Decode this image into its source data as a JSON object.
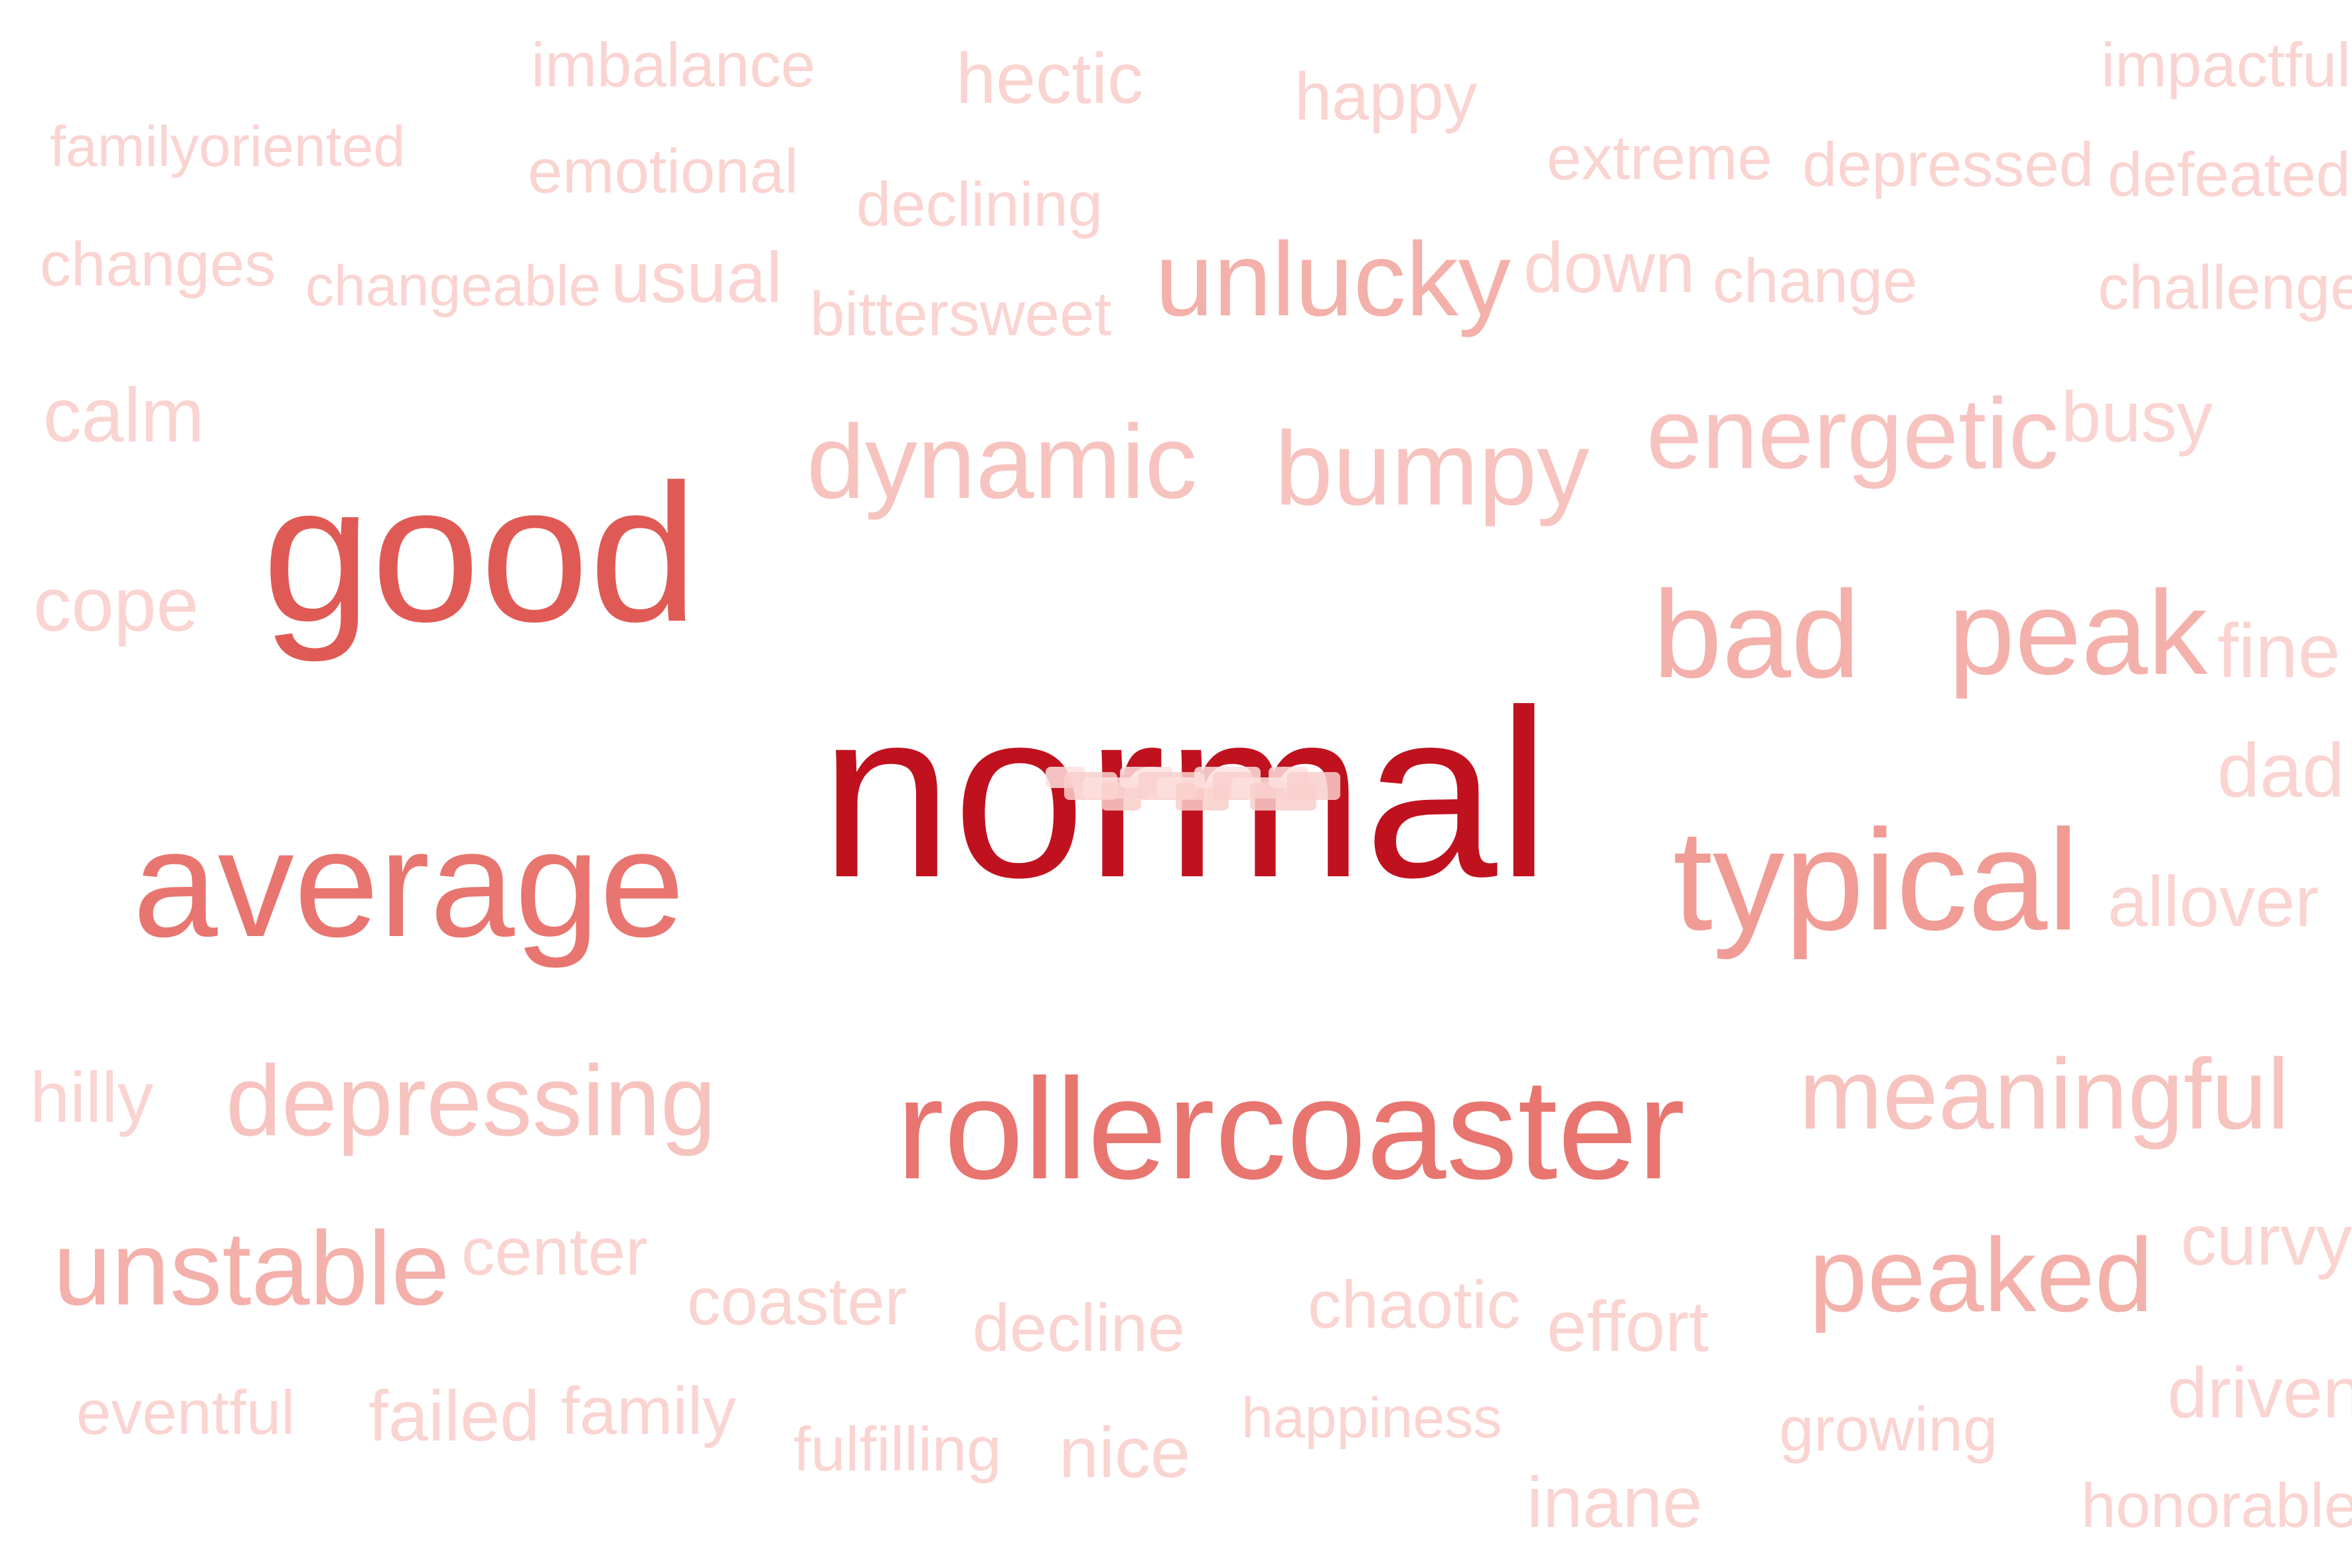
{
  "chart_data": {
    "type": "wordcloud",
    "colors": {
      "t1": "#c0111f",
      "t2": "#e05a55",
      "t3": "#e8756f",
      "t4": "#f09b94",
      "t5": "#f4b0aa",
      "t6": "#f7c3bf",
      "t7": "#fad4d1"
    },
    "words": [
      {
        "text": "normal",
        "weight": 1.0,
        "color": "t1"
      },
      {
        "text": "good",
        "weight": 0.82,
        "color": "t2"
      },
      {
        "text": "average",
        "weight": 0.64,
        "color": "t3"
      },
      {
        "text": "rollercoaster",
        "weight": 0.6,
        "color": "t3"
      },
      {
        "text": "typical",
        "weight": 0.6,
        "color": "t4"
      },
      {
        "text": "bad",
        "weight": 0.52,
        "color": "t5"
      },
      {
        "text": "peak",
        "weight": 0.5,
        "color": "t5"
      },
      {
        "text": "unstable",
        "weight": 0.44,
        "color": "t5"
      },
      {
        "text": "peaked",
        "weight": 0.44,
        "color": "t5"
      },
      {
        "text": "unlucky",
        "weight": 0.44,
        "color": "t5"
      },
      {
        "text": "dynamic",
        "weight": 0.44,
        "color": "t6"
      },
      {
        "text": "bumpy",
        "weight": 0.44,
        "color": "t6"
      },
      {
        "text": "energetic",
        "weight": 0.42,
        "color": "t6"
      },
      {
        "text": "depressing",
        "weight": 0.42,
        "color": "t6"
      },
      {
        "text": "meaningful",
        "weight": 0.42,
        "color": "t6"
      },
      {
        "text": "calm",
        "weight": 0.32,
        "color": "t7"
      },
      {
        "text": "cope",
        "weight": 0.32,
        "color": "t7"
      },
      {
        "text": "fine",
        "weight": 0.32,
        "color": "t7"
      },
      {
        "text": "dad",
        "weight": 0.32,
        "color": "t7"
      },
      {
        "text": "busy",
        "weight": 0.3,
        "color": "t7"
      },
      {
        "text": "allover",
        "weight": 0.3,
        "color": "t7"
      },
      {
        "text": "hilly",
        "weight": 0.3,
        "color": "t7"
      },
      {
        "text": "curvy",
        "weight": 0.3,
        "color": "t7"
      },
      {
        "text": "driven",
        "weight": 0.3,
        "color": "t7"
      },
      {
        "text": "inane",
        "weight": 0.3,
        "color": "t7"
      },
      {
        "text": "nice",
        "weight": 0.3,
        "color": "t7"
      },
      {
        "text": "failed",
        "weight": 0.3,
        "color": "t7"
      },
      {
        "text": "effort",
        "weight": 0.3,
        "color": "t7"
      },
      {
        "text": "center",
        "weight": 0.28,
        "color": "t7"
      },
      {
        "text": "down",
        "weight": 0.3,
        "color": "t7"
      },
      {
        "text": "usual",
        "weight": 0.3,
        "color": "t7"
      },
      {
        "text": "hectic",
        "weight": 0.3,
        "color": "t7"
      },
      {
        "text": "happy",
        "weight": 0.28,
        "color": "t7"
      },
      {
        "text": "family",
        "weight": 0.28,
        "color": "t7"
      },
      {
        "text": "chaotic",
        "weight": 0.28,
        "color": "t7"
      },
      {
        "text": "coaster",
        "weight": 0.28,
        "color": "t7"
      },
      {
        "text": "decline",
        "weight": 0.28,
        "color": "t7"
      },
      {
        "text": "eventful",
        "weight": 0.26,
        "color": "t7"
      },
      {
        "text": "fulfilling",
        "weight": 0.26,
        "color": "t7"
      },
      {
        "text": "happiness",
        "weight": 0.24,
        "color": "t7"
      },
      {
        "text": "growing",
        "weight": 0.26,
        "color": "t7"
      },
      {
        "text": "honorable",
        "weight": 0.26,
        "color": "t7"
      },
      {
        "text": "imbalance",
        "weight": 0.26,
        "color": "t7"
      },
      {
        "text": "emotional",
        "weight": 0.26,
        "color": "t7"
      },
      {
        "text": "impactful",
        "weight": 0.26,
        "color": "t7"
      },
      {
        "text": "defeated",
        "weight": 0.26,
        "color": "t7"
      },
      {
        "text": "extreme",
        "weight": 0.26,
        "color": "t7"
      },
      {
        "text": "depressed",
        "weight": 0.26,
        "color": "t7"
      },
      {
        "text": "declining",
        "weight": 0.26,
        "color": "t7"
      },
      {
        "text": "bittersweet",
        "weight": 0.26,
        "color": "t7"
      },
      {
        "text": "change",
        "weight": 0.26,
        "color": "t7"
      },
      {
        "text": "challenge",
        "weight": 0.26,
        "color": "t7"
      },
      {
        "text": "changes",
        "weight": 0.26,
        "color": "t7"
      },
      {
        "text": "changeable",
        "weight": 0.24,
        "color": "t7"
      },
      {
        "text": "familyoriented",
        "weight": 0.24,
        "color": "t7"
      }
    ]
  }
}
